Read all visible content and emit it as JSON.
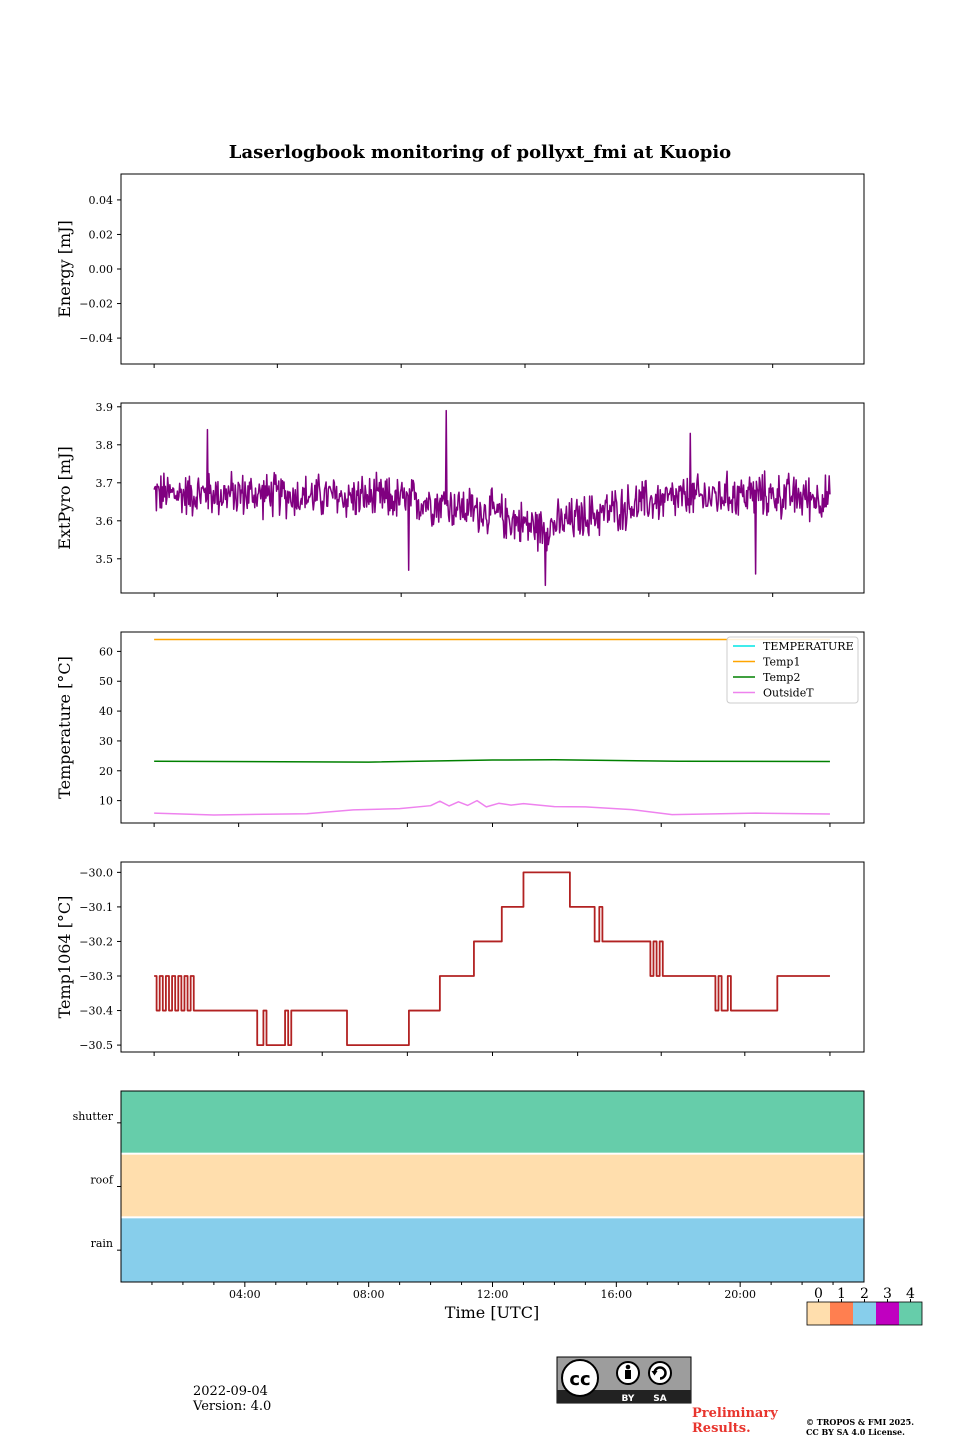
{
  "chart_data": {
    "title": "Laserlogbook monitoring of pollyxt_fmi at Kuopio",
    "xlabel": "Time [UTC]",
    "x_range_hours": [
      0,
      24
    ],
    "x_ticks": [
      "04:00",
      "08:00",
      "12:00",
      "16:00",
      "20:00"
    ],
    "panels": [
      {
        "type": "line",
        "ylabel": "Energy [mJ]",
        "ylim": [
          -0.055,
          0.055
        ],
        "yticks": [
          "0.04",
          "0.02",
          "0.00",
          "−0.02",
          "−0.04"
        ],
        "ytick_values": [
          0.04,
          0.02,
          0.0,
          -0.02,
          -0.04
        ],
        "series": []
      },
      {
        "type": "line",
        "ylabel": "ExtPyro [mJ]",
        "ylim": [
          3.41,
          3.91
        ],
        "yticks": [
          "3.9",
          "3.8",
          "3.7",
          "3.6",
          "3.5"
        ],
        "ytick_values": [
          3.9,
          3.8,
          3.7,
          3.6,
          3.5
        ],
        "series": [
          {
            "name": "ExtPyro",
            "color": "#800080",
            "profile": [
              {
                "x": 1.07,
                "y": 3.67
              },
              {
                "x": 4,
                "y": 3.67
              },
              {
                "x": 8,
                "y": 3.66
              },
              {
                "x": 10,
                "y": 3.65
              },
              {
                "x": 12,
                "y": 3.62
              },
              {
                "x": 13.5,
                "y": 3.58
              },
              {
                "x": 15,
                "y": 3.61
              },
              {
                "x": 17,
                "y": 3.65
              },
              {
                "x": 20,
                "y": 3.67
              },
              {
                "x": 22.9,
                "y": 3.66
              }
            ],
            "noise_amplitude": 0.06,
            "extremes": [
              {
                "x": 10.5,
                "y": 3.89
              },
              {
                "x": 13.7,
                "y": 3.43
              },
              {
                "x": 9.3,
                "y": 3.47
              },
              {
                "x": 20.5,
                "y": 3.46
              },
              {
                "x": 2.8,
                "y": 3.84
              },
              {
                "x": 18.4,
                "y": 3.83
              }
            ]
          }
        ]
      },
      {
        "type": "line",
        "ylabel": "Temperature [°C]",
        "ylim": [
          2.5,
          66.5
        ],
        "yticks": [
          "60",
          "50",
          "40",
          "30",
          "20",
          "10"
        ],
        "ytick_values": [
          60,
          50,
          40,
          30,
          20,
          10
        ],
        "legend_position": "top-right",
        "series": [
          {
            "name": "TEMPERATURE",
            "color": "#00e5e5",
            "points": []
          },
          {
            "name": "Temp1",
            "color": "#ffa500",
            "points": [
              {
                "x": 1.07,
                "y": 64
              },
              {
                "x": 22.9,
                "y": 64
              }
            ]
          },
          {
            "name": "Temp2",
            "color": "#008000",
            "points": [
              {
                "x": 1.07,
                "y": 23.2
              },
              {
                "x": 8,
                "y": 22.9
              },
              {
                "x": 12,
                "y": 23.6
              },
              {
                "x": 14,
                "y": 23.7
              },
              {
                "x": 18,
                "y": 23.2
              },
              {
                "x": 22.9,
                "y": 23.1
              }
            ]
          },
          {
            "name": "OutsideT",
            "color": "#ee82ee",
            "points": [
              {
                "x": 1.07,
                "y": 5.8
              },
              {
                "x": 3,
                "y": 5.2
              },
              {
                "x": 6,
                "y": 5.6
              },
              {
                "x": 7.5,
                "y": 6.9
              },
              {
                "x": 9,
                "y": 7.3
              },
              {
                "x": 10,
                "y": 8.3
              },
              {
                "x": 10.3,
                "y": 9.8
              },
              {
                "x": 10.6,
                "y": 8.2
              },
              {
                "x": 10.9,
                "y": 9.6
              },
              {
                "x": 11.2,
                "y": 8.4
              },
              {
                "x": 11.5,
                "y": 10.0
              },
              {
                "x": 11.8,
                "y": 7.9
              },
              {
                "x": 12.2,
                "y": 9.1
              },
              {
                "x": 12.6,
                "y": 8.5
              },
              {
                "x": 13.0,
                "y": 9.0
              },
              {
                "x": 14,
                "y": 8.0
              },
              {
                "x": 15,
                "y": 7.9
              },
              {
                "x": 16.5,
                "y": 7.0
              },
              {
                "x": 17.8,
                "y": 5.3
              },
              {
                "x": 20.5,
                "y": 5.8
              },
              {
                "x": 22.9,
                "y": 5.5
              }
            ]
          }
        ]
      },
      {
        "type": "line",
        "ylabel": "Temp1064 [°C]",
        "ylim": [
          -30.52,
          -29.97
        ],
        "yticks": [
          "−30.0",
          "−30.1",
          "−30.2",
          "−30.3",
          "−30.4",
          "−30.5"
        ],
        "ytick_values": [
          -30.0,
          -30.1,
          -30.2,
          -30.3,
          -30.4,
          -30.5
        ],
        "series": [
          {
            "name": "Temp1064",
            "color": "#b22222",
            "steps": [
              {
                "x": 1.07,
                "y": -30.3
              },
              {
                "x": 1.15,
                "y": -30.4
              },
              {
                "x": 1.25,
                "y": -30.3
              },
              {
                "x": 1.35,
                "y": -30.4
              },
              {
                "x": 1.45,
                "y": -30.3
              },
              {
                "x": 1.55,
                "y": -30.4
              },
              {
                "x": 1.65,
                "y": -30.3
              },
              {
                "x": 1.75,
                "y": -30.4
              },
              {
                "x": 1.85,
                "y": -30.3
              },
              {
                "x": 1.95,
                "y": -30.4
              },
              {
                "x": 2.05,
                "y": -30.3
              },
              {
                "x": 2.15,
                "y": -30.4
              },
              {
                "x": 2.25,
                "y": -30.3
              },
              {
                "x": 2.35,
                "y": -30.4
              },
              {
                "x": 4.4,
                "y": -30.5
              },
              {
                "x": 4.6,
                "y": -30.4
              },
              {
                "x": 4.7,
                "y": -30.5
              },
              {
                "x": 5.3,
                "y": -30.4
              },
              {
                "x": 5.4,
                "y": -30.5
              },
              {
                "x": 5.5,
                "y": -30.4
              },
              {
                "x": 7.3,
                "y": -30.5
              },
              {
                "x": 9.3,
                "y": -30.4
              },
              {
                "x": 10.3,
                "y": -30.3
              },
              {
                "x": 11.4,
                "y": -30.2
              },
              {
                "x": 12.3,
                "y": -30.1
              },
              {
                "x": 13.0,
                "y": -30.0
              },
              {
                "x": 14.5,
                "y": -30.1
              },
              {
                "x": 15.3,
                "y": -30.2
              },
              {
                "x": 15.45,
                "y": -30.1
              },
              {
                "x": 15.55,
                "y": -30.2
              },
              {
                "x": 17.1,
                "y": -30.3
              },
              {
                "x": 17.2,
                "y": -30.2
              },
              {
                "x": 17.3,
                "y": -30.3
              },
              {
                "x": 17.4,
                "y": -30.2
              },
              {
                "x": 17.5,
                "y": -30.3
              },
              {
                "x": 19.2,
                "y": -30.4
              },
              {
                "x": 19.3,
                "y": -30.3
              },
              {
                "x": 19.4,
                "y": -30.4
              },
              {
                "x": 19.6,
                "y": -30.3
              },
              {
                "x": 19.7,
                "y": -30.4
              },
              {
                "x": 21.2,
                "y": -30.3
              },
              {
                "x": 22.9,
                "y": -30.3
              }
            ]
          }
        ]
      },
      {
        "type": "heatmap",
        "ylabel": "",
        "rows": [
          {
            "label": "shutter",
            "value": 4
          },
          {
            "label": "roof",
            "value": 0
          },
          {
            "label": "rain",
            "value": 2
          }
        ]
      }
    ],
    "colorbar": {
      "labels": [
        "0",
        "1",
        "2",
        "3",
        "4"
      ],
      "colors": [
        "#ffdead",
        "#ff7f50",
        "#87ceeb",
        "#c000c0",
        "#66cdaa"
      ]
    }
  },
  "footer": {
    "date": "2022-09-04",
    "version": "Version: 4.0",
    "preliminary_line1": "Preliminary",
    "preliminary_line2": "Results.",
    "copyright_line1": "© TROPOS & FMI 2025.",
    "copyright_line2": "CC BY SA 4.0 License.",
    "license_badge": {
      "by": "BY",
      "sa": "SA",
      "cc": "cc"
    }
  }
}
